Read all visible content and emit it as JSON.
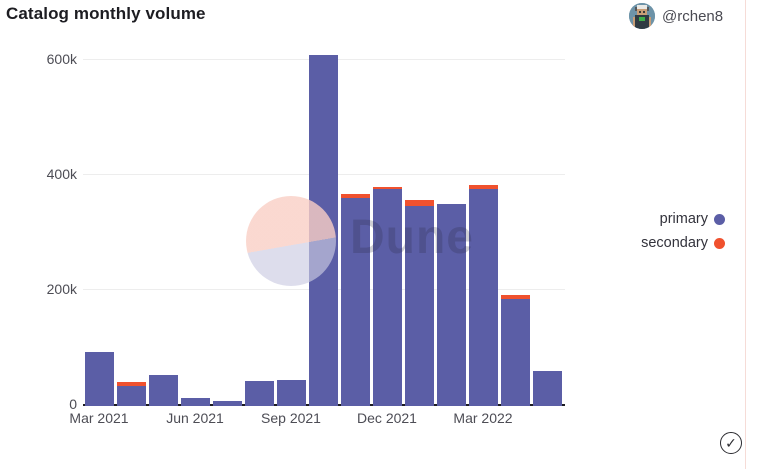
{
  "header": {
    "title": "Catalog monthly volume",
    "author": {
      "handle": "@rchen8",
      "avatar_alt": "pixel-avatar"
    }
  },
  "legend": {
    "items": [
      {
        "label": "primary",
        "color": "#5b5ea6"
      },
      {
        "label": "secondary",
        "color": "#f0512e"
      }
    ]
  },
  "watermark": {
    "text": "Dune"
  },
  "status": {
    "check_icon": "✓"
  },
  "colors": {
    "primary": "#5b5ea6",
    "secondary": "#f0512e",
    "axis": "#1c1c21",
    "grid": "#ededed",
    "tick_text": "#4d4d55",
    "border_pink": "#f6dcd7"
  },
  "chart_data": {
    "type": "bar",
    "stacked": true,
    "title": "Catalog monthly volume",
    "xlabel": "",
    "ylabel": "",
    "ylim": [
      0,
      640000
    ],
    "grid": "horizontal",
    "legend_position": "right",
    "x": [
      "Mar 2021",
      "Apr 2021",
      "May 2021",
      "Jun 2021",
      "Jul 2021",
      "Aug 2021",
      "Sep 2021",
      "Oct 2021",
      "Nov 2021",
      "Dec 2021",
      "Jan 2022",
      "Feb 2022",
      "Mar 2022",
      "Apr 2022",
      "May 2022"
    ],
    "series": [
      {
        "name": "primary",
        "color": "#5b5ea6",
        "values": [
          90000,
          32000,
          50000,
          10000,
          5000,
          40000,
          41000,
          607000,
          358000,
          374000,
          345000,
          347000,
          374000,
          182000,
          57000
        ]
      },
      {
        "name": "secondary",
        "color": "#f0512e",
        "values": [
          0,
          6000,
          0,
          0,
          0,
          0,
          0,
          0,
          7000,
          4000,
          9000,
          0,
          7000,
          8000,
          0
        ]
      }
    ],
    "y_ticks": [
      {
        "label": "0",
        "value": 0
      },
      {
        "label": "200k",
        "value": 200000
      },
      {
        "label": "400k",
        "value": 400000
      },
      {
        "label": "600k",
        "value": 600000
      }
    ],
    "x_ticks": [
      {
        "index": 0,
        "label": "Mar 2021"
      },
      {
        "index": 3,
        "label": "Jun 2021"
      },
      {
        "index": 6,
        "label": "Sep 2021"
      },
      {
        "index": 9,
        "label": "Dec 2021"
      },
      {
        "index": 12,
        "label": "Mar 2022"
      }
    ]
  }
}
